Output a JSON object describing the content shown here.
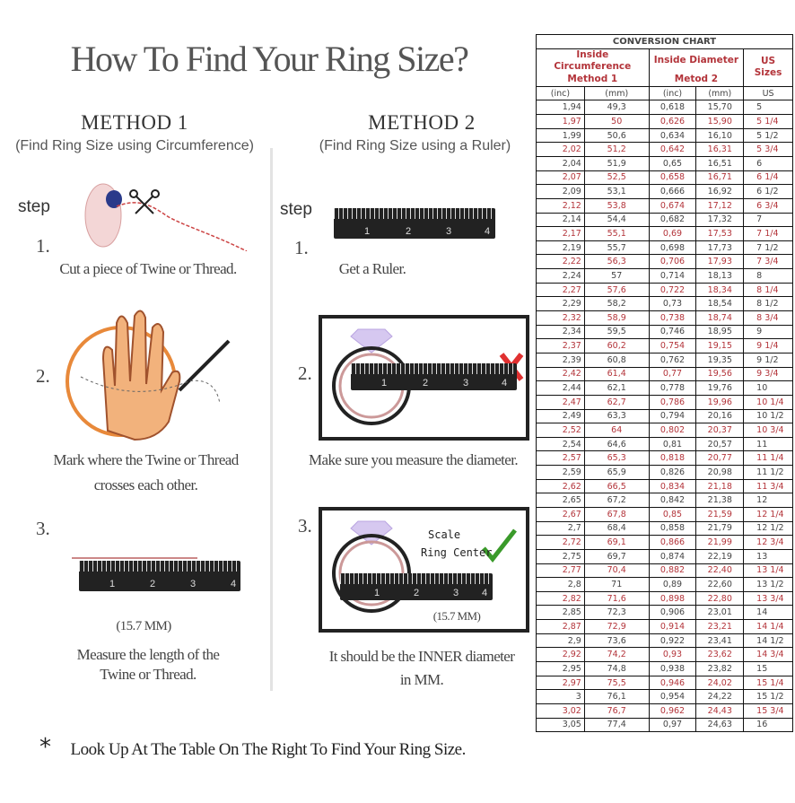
{
  "title": "How To Find Your Ring Size?",
  "method1": {
    "heading": "METHOD 1",
    "subtitle": "(Find Ring Size using Circumference)",
    "step_label": "step",
    "steps": [
      {
        "num": "1.",
        "text": "Cut a piece of Twine or Thread."
      },
      {
        "num": "2.",
        "text": "Mark where the Twine or Thread",
        "text2": "crosses each other."
      },
      {
        "num": "3.",
        "measure": "(15.7 MM)",
        "text": "Measure the length of the",
        "text2": "Twine or Thread."
      }
    ]
  },
  "method2": {
    "heading": "METHOD 2",
    "subtitle": "(Find Ring Size using a Ruler)",
    "step_label": "step",
    "steps": [
      {
        "num": "1.",
        "text": "Get a Ruler."
      },
      {
        "num": "2.",
        "text": "Make sure you measure the diameter."
      },
      {
        "num": "3.",
        "scale": "Scale",
        "ring_center": "Ring Center",
        "measure": "(15.7 MM)",
        "text": "It should be the INNER diameter",
        "text2": "in MM."
      }
    ]
  },
  "ruler_numbers": [
    "1",
    "2",
    "3",
    "4"
  ],
  "footer": {
    "asterisk": "*",
    "text": "Look Up At The Table On The Right To Find Your Ring Size."
  },
  "colors": {
    "accent_red": "#b3343a",
    "check_green": "#3a9a2a",
    "cross_red": "#e03030"
  },
  "table": {
    "title": "CONVERSION CHART",
    "group1_a": "Inside Circumference",
    "group1_b": "Method 1",
    "group2_a": "Inside Diameter",
    "group2_b": "Metod 2",
    "group3": "US Sizes",
    "columns": [
      "(inc)",
      "(mm)",
      "(inc)",
      "(mm)",
      "US"
    ],
    "rows": [
      [
        "1,94",
        "49,3",
        "0,618",
        "15,70",
        "5"
      ],
      [
        "1,97",
        "50",
        "0,626",
        "15,90",
        "5 1/4"
      ],
      [
        "1,99",
        "50,6",
        "0,634",
        "16,10",
        "5 1/2"
      ],
      [
        "2,02",
        "51,2",
        "0,642",
        "16,31",
        "5 3/4"
      ],
      [
        "2,04",
        "51,9",
        "0,65",
        "16,51",
        "6"
      ],
      [
        "2,07",
        "52,5",
        "0,658",
        "16,71",
        "6 1/4"
      ],
      [
        "2,09",
        "53,1",
        "0,666",
        "16,92",
        "6 1/2"
      ],
      [
        "2,12",
        "53,8",
        "0,674",
        "17,12",
        "6 3/4"
      ],
      [
        "2,14",
        "54,4",
        "0,682",
        "17,32",
        "7"
      ],
      [
        "2,17",
        "55,1",
        "0,69",
        "17,53",
        "7 1/4"
      ],
      [
        "2,19",
        "55,7",
        "0,698",
        "17,73",
        "7 1/2"
      ],
      [
        "2,22",
        "56,3",
        "0,706",
        "17,93",
        "7 3/4"
      ],
      [
        "2,24",
        "57",
        "0,714",
        "18,13",
        "8"
      ],
      [
        "2,27",
        "57,6",
        "0,722",
        "18,34",
        "8 1/4"
      ],
      [
        "2,29",
        "58,2",
        "0,73",
        "18,54",
        "8 1/2"
      ],
      [
        "2,32",
        "58,9",
        "0,738",
        "18,74",
        "8 3/4"
      ],
      [
        "2,34",
        "59,5",
        "0,746",
        "18,95",
        "9"
      ],
      [
        "2,37",
        "60,2",
        "0,754",
        "19,15",
        "9 1/4"
      ],
      [
        "2,39",
        "60,8",
        "0,762",
        "19,35",
        "9 1/2"
      ],
      [
        "2,42",
        "61,4",
        "0,77",
        "19,56",
        "9 3/4"
      ],
      [
        "2,44",
        "62,1",
        "0,778",
        "19,76",
        "10"
      ],
      [
        "2,47",
        "62,7",
        "0,786",
        "19,96",
        "10 1/4"
      ],
      [
        "2,49",
        "63,3",
        "0,794",
        "20,16",
        "10 1/2"
      ],
      [
        "2,52",
        "64",
        "0,802",
        "20,37",
        "10 3/4"
      ],
      [
        "2,54",
        "64,6",
        "0,81",
        "20,57",
        "11"
      ],
      [
        "2,57",
        "65,3",
        "0,818",
        "20,77",
        "11 1/4"
      ],
      [
        "2,59",
        "65,9",
        "0,826",
        "20,98",
        "11 1/2"
      ],
      [
        "2,62",
        "66,5",
        "0,834",
        "21,18",
        "11 3/4"
      ],
      [
        "2,65",
        "67,2",
        "0,842",
        "21,38",
        "12"
      ],
      [
        "2,67",
        "67,8",
        "0,85",
        "21,59",
        "12 1/4"
      ],
      [
        "2,7",
        "68,4",
        "0,858",
        "21,79",
        "12 1/2"
      ],
      [
        "2,72",
        "69,1",
        "0,866",
        "21,99",
        "12 3/4"
      ],
      [
        "2,75",
        "69,7",
        "0,874",
        "22,19",
        "13"
      ],
      [
        "2,77",
        "70,4",
        "0,882",
        "22,40",
        "13 1/4"
      ],
      [
        "2,8",
        "71",
        "0,89",
        "22,60",
        "13 1/2"
      ],
      [
        "2,82",
        "71,6",
        "0,898",
        "22,80",
        "13 3/4"
      ],
      [
        "2,85",
        "72,3",
        "0,906",
        "23,01",
        "14"
      ],
      [
        "2,87",
        "72,9",
        "0,914",
        "23,21",
        "14 1/4"
      ],
      [
        "2,9",
        "73,6",
        "0,922",
        "23,41",
        "14 1/2"
      ],
      [
        "2,92",
        "74,2",
        "0,93",
        "23,62",
        "14 3/4"
      ],
      [
        "2,95",
        "74,8",
        "0,938",
        "23,82",
        "15"
      ],
      [
        "2,97",
        "75,5",
        "0,946",
        "24,02",
        "15 1/4"
      ],
      [
        "3",
        "76,1",
        "0,954",
        "24,22",
        "15 1/2"
      ],
      [
        "3,02",
        "76,7",
        "0,962",
        "24,43",
        "15 3/4"
      ],
      [
        "3,05",
        "77,4",
        "0,97",
        "24,63",
        "16"
      ]
    ]
  }
}
